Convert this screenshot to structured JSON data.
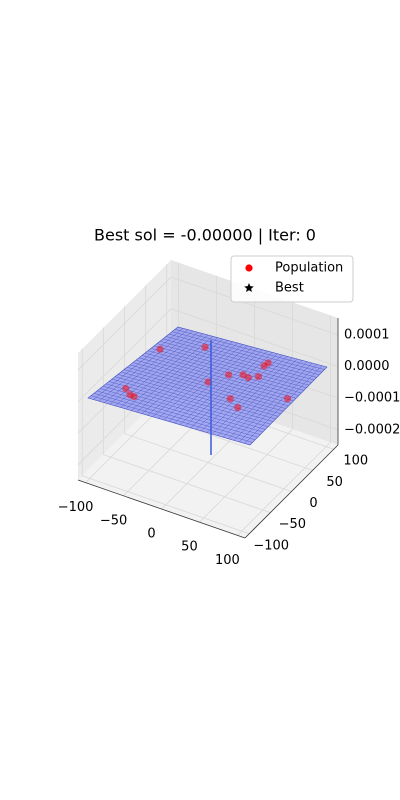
{
  "chart_data": {
    "type": "scatter3d",
    "title": "Best sol = -0.00000 | Iter: 0",
    "xlim": [
      -110,
      110
    ],
    "ylim": [
      -110,
      110
    ],
    "zlim": [
      -0.000248,
      0.000154
    ],
    "xticks": [
      {
        "value": -100,
        "label": "−100"
      },
      {
        "value": -50,
        "label": "−50"
      },
      0,
      50,
      100
    ],
    "yticks": [
      {
        "value": -100,
        "label": "−100"
      },
      {
        "value": -50,
        "label": "−50"
      },
      0,
      50,
      100
    ],
    "zticks": [
      {
        "value": -0.0002,
        "label": "−0.0002"
      },
      {
        "value": -0.0001,
        "label": "−0.0001"
      },
      {
        "value": 0,
        "label": "0.0000"
      },
      0.0001
    ],
    "grid": true,
    "legend": "upper right",
    "series": [
      {
        "name": "Population",
        "color": "red",
        "marker": "circle",
        "x": [
          -76,
          -66,
          -60,
          -2,
          11,
          25,
          33,
          42,
          37,
          38,
          36,
          52,
          92,
          -39,
          -81
        ],
        "y": [
          -58,
          -66,
          -67,
          4,
          29,
          38,
          36,
          44,
          66,
          74,
          -12,
          -23,
          23,
          63,
          32
        ],
        "values": [
          0,
          0,
          0,
          0,
          0,
          0,
          0,
          0,
          0,
          0,
          0,
          0,
          0,
          0,
          0
        ]
      },
      {
        "name": "Best",
        "color": "black",
        "marker": "star",
        "x": [],
        "y": [],
        "values": []
      }
    ]
  }
}
